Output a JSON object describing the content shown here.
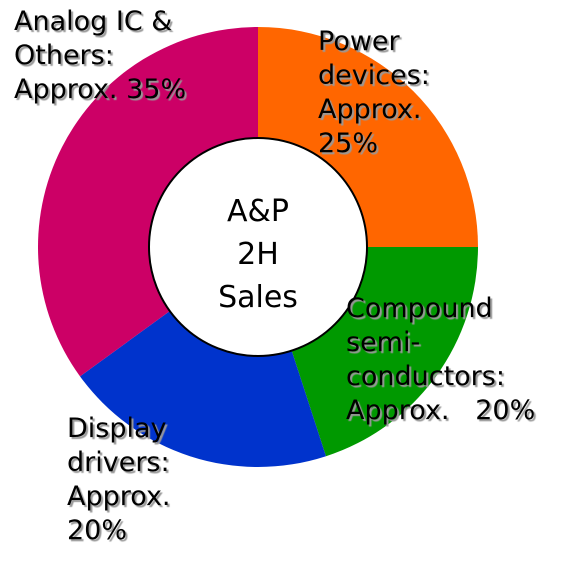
{
  "chart_data": {
    "type": "donut",
    "center_label": "A&P 2H Sales",
    "categories": [
      "Power devices:",
      "Compound semi-conductors:",
      "Display drivers:",
      "Analog IC & Others:"
    ],
    "values": [
      25,
      20,
      20,
      35
    ],
    "value_labels": [
      "Approx. 25%",
      "Approx.   20%",
      "Approx. 20%",
      "Approx. 35%"
    ],
    "colors": [
      "#ff6600",
      "#009900",
      "#0033cc",
      "#cc0066"
    ]
  }
}
